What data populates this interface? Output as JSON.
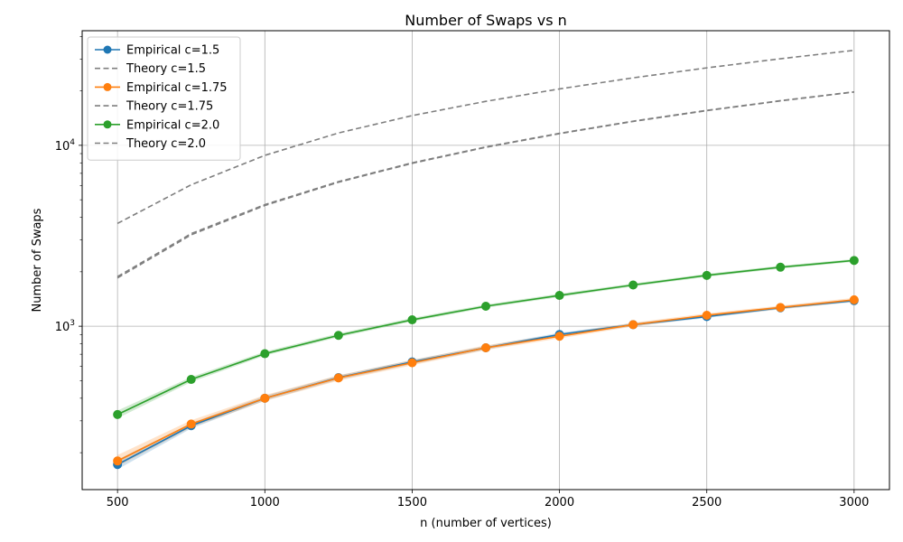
{
  "chart_data": {
    "type": "line",
    "title": "Number of Swaps vs n",
    "xlabel": "n (number of vertices)",
    "ylabel": "Number of Swaps",
    "x": [
      500,
      750,
      1000,
      1250,
      1500,
      1750,
      2000,
      2250,
      2500,
      2750,
      3000
    ],
    "xlim": [
      380,
      3120
    ],
    "xticks": [
      500,
      1000,
      1500,
      2000,
      2500,
      3000
    ],
    "yscale": "log",
    "ylim": [
      125,
      43000
    ],
    "yticks": [
      {
        "value": 1000,
        "base": "10",
        "exp": "3"
      },
      {
        "value": 10000,
        "base": "10",
        "exp": "4"
      }
    ],
    "grid": true,
    "legend_position": "top-left",
    "series": [
      {
        "name": "Empirical c=1.5",
        "kind": "empirical",
        "color": "#1f77b4",
        "values": [
          172,
          282,
          400,
          520,
          635,
          760,
          900,
          1020,
          1130,
          1265,
          1385
        ],
        "band": [
          [
            162,
            183
          ],
          [
            272,
            292
          ],
          [
            388,
            412
          ],
          [
            506,
            534
          ],
          [
            618,
            652
          ],
          [
            742,
            778
          ],
          [
            880,
            920
          ],
          [
            1000,
            1040
          ],
          [
            1110,
            1150
          ],
          [
            1240,
            1290
          ],
          [
            1360,
            1410
          ]
        ]
      },
      {
        "name": "Theory c=1.5",
        "kind": "theory",
        "color": "#7f7f7f",
        "values": [
          1850,
          3200,
          4650,
          6250,
          7950,
          9750,
          11600,
          13550,
          15550,
          17600,
          19700
        ]
      },
      {
        "name": "Empirical c=1.75",
        "kind": "empirical",
        "color": "#ff7f0e",
        "values": [
          180,
          288,
          400,
          518,
          628,
          760,
          880,
          1020,
          1150,
          1270,
          1400
        ],
        "band": [
          [
            168,
            194
          ],
          [
            276,
            302
          ],
          [
            386,
            416
          ],
          [
            500,
            536
          ],
          [
            608,
            650
          ],
          [
            738,
            784
          ],
          [
            856,
            906
          ],
          [
            996,
            1046
          ],
          [
            1124,
            1178
          ],
          [
            1242,
            1300
          ],
          [
            1368,
            1434
          ]
        ]
      },
      {
        "name": "Theory c=1.75",
        "kind": "theory",
        "color": "#7f7f7f",
        "values": [
          1880,
          3250,
          4700,
          6300,
          8000,
          9800,
          11650,
          13600,
          15600,
          17650,
          19750
        ]
      },
      {
        "name": "Empirical c=2.0",
        "kind": "empirical",
        "color": "#2ca02c",
        "values": [
          325,
          508,
          705,
          890,
          1085,
          1290,
          1480,
          1690,
          1910,
          2120,
          2310
        ],
        "band": [
          [
            310,
            342
          ],
          [
            492,
            524
          ],
          [
            688,
            724
          ],
          [
            870,
            912
          ],
          [
            1062,
            1110
          ],
          [
            1264,
            1318
          ],
          [
            1450,
            1512
          ],
          [
            1658,
            1724
          ],
          [
            1874,
            1948
          ],
          [
            2082,
            2160
          ],
          [
            2270,
            2352
          ]
        ]
      },
      {
        "name": "Theory c=2.0",
        "kind": "theory",
        "color": "#7f7f7f",
        "values": [
          3700,
          6050,
          8800,
          11700,
          14600,
          17500,
          20500,
          23600,
          26800,
          30100,
          33500
        ]
      }
    ]
  }
}
